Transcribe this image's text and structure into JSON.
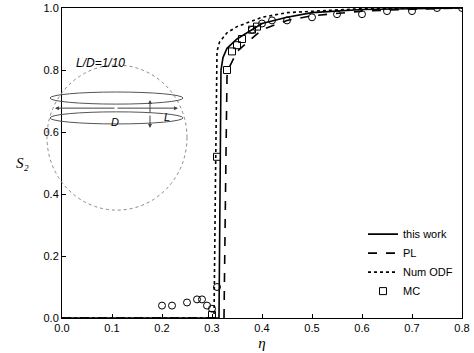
{
  "chart_data": {
    "type": "line",
    "xlabel": "η",
    "ylabel": "S₂",
    "annotations": [
      "L/D=1/10",
      "D",
      "L"
    ],
    "xlim": [
      0,
      0.8
    ],
    "ylim": [
      0,
      1.0
    ],
    "xticks": [
      {
        "value": 0,
        "label": "0.0"
      },
      {
        "value": 0.1,
        "label": "0.1"
      },
      {
        "value": 0.2,
        "label": "0.2"
      },
      {
        "value": 0.3,
        "label": "0.3"
      },
      {
        "value": 0.4,
        "label": "0.4"
      },
      {
        "value": 0.5,
        "label": "0.5"
      },
      {
        "value": 0.6,
        "label": "0.6"
      },
      {
        "value": 0.7,
        "label": "0.7"
      },
      {
        "value": 0.8,
        "label": "0.8"
      }
    ],
    "yticks": [
      {
        "value": 0,
        "label": "0.0"
      },
      {
        "value": 0.2,
        "label": "0.2"
      },
      {
        "value": 0.4,
        "label": "0.4"
      },
      {
        "value": 0.6,
        "label": "0.6"
      },
      {
        "value": 0.8,
        "label": "0.8"
      },
      {
        "value": 1.0,
        "label": "1.0"
      }
    ],
    "grid": false,
    "legend": "lower right",
    "series": [
      {
        "name": "this work",
        "type": "line",
        "line_style": "solid",
        "color": "#000000",
        "x": [
          0,
          0.3,
          0.314,
          0.316,
          0.318,
          0.322,
          0.33,
          0.35,
          0.4,
          0.45,
          0.5,
          0.6,
          0.7,
          0.8
        ],
        "values": [
          0,
          0,
          0,
          0.4,
          0.8,
          0.84,
          0.87,
          0.9,
          0.95,
          0.97,
          0.985,
          0.995,
          0.998,
          1.0
        ]
      },
      {
        "name": "PL",
        "type": "line",
        "line_style": "dash",
        "color": "#000000",
        "x": [
          0,
          0.3,
          0.324,
          0.327,
          0.33,
          0.335,
          0.35,
          0.4,
          0.45,
          0.5,
          0.6,
          0.7,
          0.8
        ],
        "values": [
          0,
          0,
          0,
          0.4,
          0.78,
          0.81,
          0.86,
          0.93,
          0.96,
          0.975,
          0.99,
          0.996,
          1.0
        ]
      },
      {
        "name": "Num ODF",
        "type": "line",
        "line_style": "dot",
        "color": "#000000",
        "x": [
          0,
          0.29,
          0.304,
          0.307,
          0.31,
          0.315,
          0.33,
          0.35,
          0.4,
          0.45,
          0.5,
          0.6,
          0.7,
          0.8
        ],
        "values": [
          0,
          0,
          0,
          0.45,
          0.86,
          0.89,
          0.92,
          0.94,
          0.97,
          0.985,
          0.99,
          0.998,
          1.0,
          1.0
        ]
      },
      {
        "name": "MC",
        "type": "scatter",
        "marker": "square-open",
        "color": "#000000",
        "x": [
          0.3,
          0.31,
          0.33,
          0.34,
          0.35,
          0.36,
          0.38,
          0.39
        ],
        "values": [
          0.01,
          0.52,
          0.8,
          0.86,
          0.88,
          0.9,
          0.93,
          0.94
        ]
      },
      {
        "name": "MC",
        "type": "scatter",
        "marker": "circle-open",
        "color": "#000000",
        "x": [
          0.2,
          0.22,
          0.25,
          0.27,
          0.28,
          0.29,
          0.3,
          0.31,
          0.38,
          0.4,
          0.42,
          0.45,
          0.5,
          0.55,
          0.6,
          0.65,
          0.7,
          0.75,
          0.8
        ],
        "values": [
          0.04,
          0.04,
          0.05,
          0.06,
          0.06,
          0.04,
          0.03,
          0.1,
          0.93,
          0.95,
          0.96,
          0.96,
          0.97,
          0.98,
          0.98,
          0.99,
          0.99,
          1.0,
          1.0
        ]
      }
    ]
  }
}
